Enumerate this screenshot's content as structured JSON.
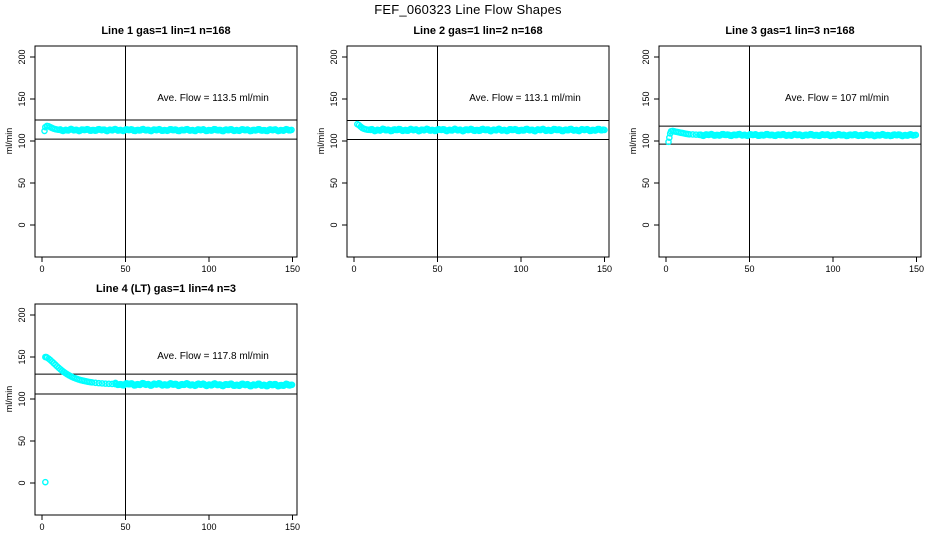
{
  "figure": {
    "title": "FEF_060323  Line Flow Shapes",
    "background": "#ffffff",
    "point_color": "#00ffff",
    "line_color": "#000000"
  },
  "axes": {
    "y_label": "ml/min",
    "x_tick_labels": [
      "0",
      "50",
      "100",
      "150"
    ],
    "y_tick_labels": [
      "0",
      "50",
      "100",
      "150",
      "200"
    ],
    "x_ticks": [
      0,
      50,
      100,
      150
    ],
    "y_ticks": [
      0,
      50,
      100,
      150,
      200
    ]
  },
  "chart_data": [
    {
      "type": "scatter",
      "title": "Line 1 gas=1 lin=1 n=168",
      "annotation": "Ave. Flow =  113.5  ml/min",
      "ave_flow": 113.5,
      "ylabel": "ml/min",
      "xlim": [
        0,
        150
      ],
      "ylim": [
        0,
        200
      ],
      "grid": false,
      "vline_x": 50,
      "hlines": [
        125.0,
        102.3
      ],
      "points": [
        [
          1.5,
          112
        ],
        [
          2,
          116.5
        ],
        [
          3,
          118
        ],
        [
          4,
          117.5
        ],
        [
          5,
          116.5
        ],
        [
          6,
          115.5
        ],
        [
          7,
          114.7
        ],
        [
          8,
          114.1
        ],
        [
          9,
          113.7
        ],
        [
          10,
          113.4
        ],
        [
          11,
          113.2
        ]
      ],
      "steady": {
        "from": 11,
        "to": 150,
        "start": 113.1,
        "end": 112.9,
        "band": 1.3,
        "step": 0.8
      }
    },
    {
      "type": "scatter",
      "title": "Line 2 gas=1 lin=2 n=168",
      "annotation": "Ave. Flow =  113.1  ml/min",
      "ave_flow": 113.1,
      "ylabel": "ml/min",
      "xlim": [
        0,
        150
      ],
      "ylim": [
        0,
        200
      ],
      "grid": false,
      "vline_x": 50,
      "hlines": [
        124.4,
        101.8
      ],
      "points": [
        [
          2,
          120
        ],
        [
          3,
          118.8
        ],
        [
          4,
          117
        ],
        [
          5,
          115.5
        ],
        [
          6,
          114.5
        ],
        [
          7,
          113.9
        ],
        [
          8,
          113.5
        ],
        [
          9,
          113.3
        ],
        [
          10,
          113.2
        ]
      ],
      "steady": {
        "from": 10,
        "to": 150,
        "start": 113.1,
        "end": 113.1,
        "band": 1.5,
        "step": 0.8
      }
    },
    {
      "type": "scatter",
      "title": "Line 3 gas=1 lin=3 n=168",
      "annotation": "Ave. Flow =  107  ml/min",
      "ave_flow": 107,
      "ylabel": "ml/min",
      "xlim": [
        0,
        150
      ],
      "ylim": [
        0,
        200
      ],
      "grid": false,
      "vline_x": 50,
      "hlines": [
        117.7,
        96.3
      ],
      "points": [
        [
          1.5,
          99
        ],
        [
          2,
          104
        ],
        [
          2.5,
          109
        ],
        [
          3,
          111.5
        ],
        [
          4,
          112
        ],
        [
          5,
          111.5
        ],
        [
          6,
          111
        ],
        [
          7,
          110.6
        ],
        [
          8,
          110.2
        ],
        [
          9,
          109.8
        ],
        [
          10,
          109.4
        ],
        [
          11,
          109
        ],
        [
          12,
          108.6
        ],
        [
          13,
          108.3
        ],
        [
          14,
          108
        ],
        [
          16,
          107.8
        ],
        [
          18,
          107.6
        ],
        [
          20,
          107.4
        ]
      ],
      "steady": {
        "from": 20,
        "to": 150,
        "start": 107.3,
        "end": 106.9,
        "band": 1.2,
        "step": 0.8
      }
    },
    {
      "type": "scatter",
      "title": "Line 4 (LT) gas=1 lin=4 n=3",
      "annotation": "Ave. Flow =  117.8  ml/min",
      "ave_flow": 117.8,
      "ylabel": "ml/min",
      "xlim": [
        0,
        150
      ],
      "ylim": [
        0,
        200
      ],
      "grid": false,
      "vline_x": 50,
      "hlines": [
        129.6,
        106.0
      ],
      "points": [
        [
          2,
          1
        ],
        [
          2,
          150
        ],
        [
          2.5,
          150
        ],
        [
          3,
          149.3
        ],
        [
          4,
          148
        ],
        [
          5,
          146.4
        ],
        [
          6,
          144.6
        ],
        [
          7,
          142.7
        ],
        [
          8,
          140.8
        ],
        [
          9,
          138.9
        ],
        [
          10,
          137.1
        ],
        [
          11,
          135.4
        ],
        [
          12,
          133.8
        ],
        [
          13,
          132.3
        ],
        [
          14,
          130.9
        ],
        [
          15,
          129.6
        ],
        [
          16,
          128.4
        ],
        [
          17,
          127.3
        ],
        [
          18,
          126.3
        ],
        [
          19,
          125.4
        ],
        [
          20,
          124.6
        ],
        [
          21,
          123.9
        ],
        [
          22,
          123.2
        ],
        [
          23,
          122.6
        ],
        [
          24,
          122.1
        ],
        [
          25,
          121.6
        ],
        [
          26,
          121.2
        ],
        [
          27,
          120.8
        ],
        [
          28,
          120.4
        ],
        [
          29,
          120.1
        ],
        [
          30,
          119.8
        ],
        [
          32,
          119.3
        ],
        [
          34,
          118.9
        ],
        [
          36,
          118.6
        ],
        [
          38,
          118.3
        ],
        [
          40,
          118.1
        ],
        [
          42,
          117.9
        ],
        [
          44,
          117.7
        ]
      ],
      "steady": {
        "from": 44,
        "to": 150,
        "start": 117.6,
        "end": 116.5,
        "band": 1.7,
        "step": 0.7
      }
    }
  ]
}
